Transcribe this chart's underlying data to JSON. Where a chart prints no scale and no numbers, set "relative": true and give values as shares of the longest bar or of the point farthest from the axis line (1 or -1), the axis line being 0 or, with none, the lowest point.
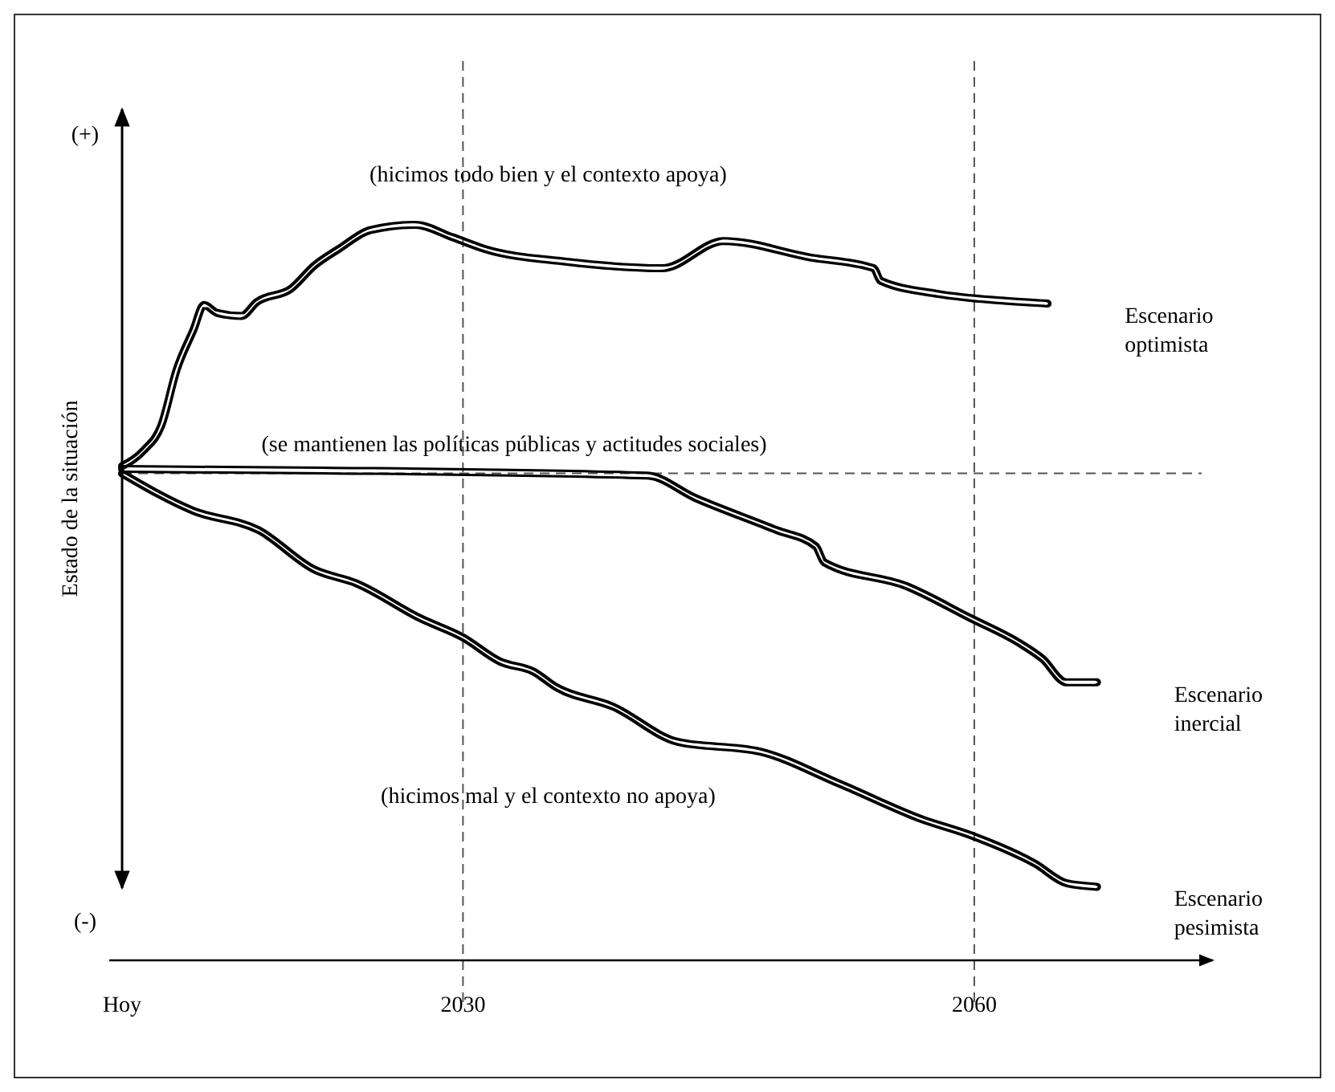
{
  "chart_data": {
    "type": "line",
    "relative": true,
    "ylabel": "Estado de la situación",
    "xlim": [
      2010,
      2074
    ],
    "xticks": [
      {
        "value": 2010,
        "label": "Hoy"
      },
      2030,
      2060
    ],
    "annotations": [
      "(hicimos todo bien y el contexto apoya)",
      "(hicimos mal y el contexto no apoya)",
      "(+)",
      "(-)"
    ],
    "ref_lines": [
      {
        "axis": "y",
        "value": 0.662,
        "label": "(se mantienen las políticas públicas y actitudes sociales)",
        "line_style": "dashed",
        "color": "#555555"
      },
      {
        "axis": "x",
        "value": 2030,
        "label": null,
        "line_style": "dashed",
        "color": "#555555"
      },
      {
        "axis": "x",
        "value": 2060,
        "label": null,
        "line_style": "dashed",
        "color": "#555555"
      }
    ],
    "grid": false,
    "line_style": "solid",
    "series": [
      {
        "name": "Escenario optimista",
        "color": "#000000",
        "x": [
          2010,
          2011.3,
          2012.3,
          2013.2,
          2014.2,
          2014.8,
          2015.6,
          2017.0,
          2017.9,
          2019.9,
          2021.3,
          2022.7,
          2024.6,
          2027.2,
          2029.4,
          2031.3,
          2036.0,
          2041.7,
          2045.3,
          2050.3,
          2054.1,
          2054.5,
          2057.9,
          2061.6,
          2064.3
        ],
        "values": [
          0.672,
          0.694,
          0.727,
          0.803,
          0.858,
          0.891,
          0.88,
          0.876,
          0.895,
          0.913,
          0.945,
          0.967,
          0.993,
          1,
          0.983,
          0.967,
          0.95,
          0.941,
          0.978,
          0.956,
          0.941,
          0.924,
          0.906,
          0.897,
          0.893
        ]
      },
      {
        "name": "Escenario inercial",
        "color": "#000000",
        "x": [
          2010,
          2021.8,
          2040.8,
          2043.6,
          2048.4,
          2050.7,
          2051.2,
          2056.0,
          2059.8,
          2062.6,
          2064.0,
          2065.4,
          2067.2
        ],
        "values": [
          0.668,
          0.666,
          0.659,
          0.629,
          0.585,
          0.563,
          0.541,
          0.509,
          0.465,
          0.432,
          0.41,
          0.378,
          0.378
        ]
      },
      {
        "name": "Escenario pesimista",
        "color": "#000000",
        "x": [
          2010,
          2014.2,
          2018.0,
          2021.3,
          2023.7,
          2027.5,
          2030,
          2032.2,
          2034.1,
          2035.5,
          2038.8,
          2042.6,
          2047.4,
          2052.1,
          2056.9,
          2059.8,
          2063.6,
          2065.4,
          2067.2
        ],
        "values": [
          0.662,
          0.611,
          0.585,
          0.531,
          0.513,
          0.465,
          0.439,
          0.406,
          0.393,
          0.371,
          0.345,
          0.297,
          0.284,
          0.24,
          0.192,
          0.17,
          0.131,
          0.105,
          0.1
        ]
      }
    ]
  }
}
